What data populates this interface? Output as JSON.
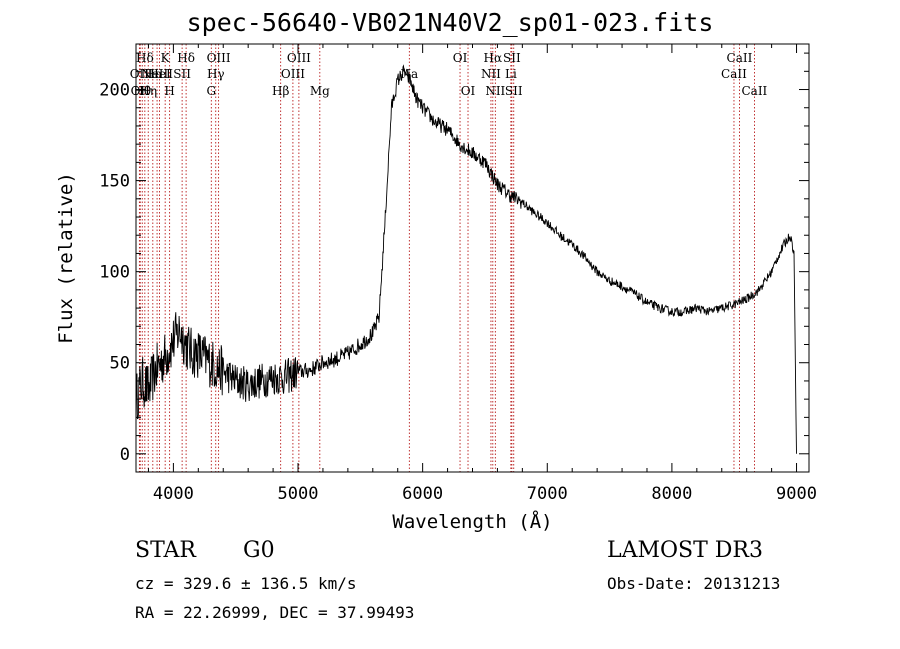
{
  "chart_data": {
    "type": "line",
    "title": "spec-56640-VB021N40V2_sp01-023.fits",
    "xlabel": "Wavelength (Å)",
    "ylabel": "Flux (relative)",
    "xlim": [
      3700,
      9100
    ],
    "ylim": [
      -10,
      225
    ],
    "xticks": [
      4000,
      5000,
      6000,
      7000,
      8000,
      9000
    ],
    "yticks": [
      0,
      50,
      100,
      150,
      200
    ],
    "series": [
      {
        "name": "flux",
        "x": [
          3700,
          3750,
          3800,
          3850,
          3900,
          3950,
          4000,
          4050,
          4100,
          4150,
          4200,
          4300,
          4400,
          4500,
          4600,
          4700,
          4800,
          4900,
          5000,
          5100,
          5200,
          5300,
          5400,
          5500,
          5600,
          5650,
          5700,
          5750,
          5800,
          5850,
          5900,
          5950,
          6000,
          6100,
          6200,
          6300,
          6400,
          6500,
          6600,
          6700,
          6800,
          6900,
          7000,
          7100,
          7200,
          7300,
          7400,
          7500,
          7600,
          7700,
          7800,
          7900,
          8000,
          8100,
          8200,
          8300,
          8400,
          8500,
          8600,
          8700,
          8800,
          8850,
          8900,
          8950,
          8980,
          9000
        ],
        "y": [
          30,
          40,
          35,
          45,
          50,
          55,
          62,
          68,
          60,
          55,
          55,
          50,
          45,
          40,
          38,
          40,
          42,
          42,
          45,
          46,
          50,
          52,
          55,
          60,
          66,
          75,
          130,
          190,
          205,
          210,
          205,
          195,
          190,
          182,
          178,
          170,
          165,
          160,
          148,
          142,
          138,
          132,
          127,
          120,
          115,
          108,
          100,
          95,
          92,
          88,
          83,
          80,
          78,
          78,
          80,
          78,
          80,
          82,
          85,
          90,
          100,
          108,
          115,
          120,
          110,
          0
        ]
      }
    ],
    "lines": [
      {
        "w": 3727,
        "label": "OII",
        "row": 2
      },
      {
        "w": 3734,
        "label": "OII",
        "row": 3
      },
      {
        "w": 3750,
        "label": "Hθ",
        "row": 3
      },
      {
        "w": 3771,
        "label": "Hδ",
        "row": 1
      },
      {
        "w": 3798,
        "label": "Hη",
        "row": 3
      },
      {
        "w": 3835,
        "label": "Hε",
        "row": 2
      },
      {
        "w": 3869,
        "label": "NeIII",
        "row": 2
      },
      {
        "w": 3889,
        "label": "HeI",
        "row": 2
      },
      {
        "w": 3934,
        "label": "K",
        "row": 1
      },
      {
        "w": 3970,
        "label": "H",
        "row": 3
      },
      {
        "w": 4070,
        "label": "SII",
        "row": 2
      },
      {
        "w": 4102,
        "label": "Hδ",
        "row": 1
      },
      {
        "w": 4304,
        "label": "G",
        "row": 3
      },
      {
        "w": 4340,
        "label": "Hγ",
        "row": 2
      },
      {
        "w": 4363,
        "label": "OIII",
        "row": 1
      },
      {
        "w": 4861,
        "label": "Hβ",
        "row": 3
      },
      {
        "w": 4959,
        "label": "OIII",
        "row": 2
      },
      {
        "w": 5007,
        "label": "OIII",
        "row": 1
      },
      {
        "w": 5175,
        "label": "Mg",
        "row": 3
      },
      {
        "w": 5893,
        "label": "Na",
        "row": 2
      },
      {
        "w": 6300,
        "label": "OI",
        "row": 1
      },
      {
        "w": 6364,
        "label": "OI",
        "row": 3
      },
      {
        "w": 6548,
        "label": "NII",
        "row": 2
      },
      {
        "w": 6563,
        "label": "Hα",
        "row": 1
      },
      {
        "w": 6583,
        "label": "NII",
        "row": 3
      },
      {
        "w": 6708,
        "label": "Li",
        "row": 2
      },
      {
        "w": 6716,
        "label": "SII",
        "row": 1
      },
      {
        "w": 6731,
        "label": "SII",
        "row": 3
      },
      {
        "w": 8498,
        "label": "CaII",
        "row": 2
      },
      {
        "w": 8542,
        "label": "CaII",
        "row": 1
      },
      {
        "w": 8662,
        "label": "CaII",
        "row": 3
      }
    ]
  },
  "info": {
    "class_label": "STAR",
    "subclass": "G0",
    "survey": "LAMOST DR3",
    "cz": "cz = 329.6 ± 136.5 km/s",
    "obs_date": "Obs-Date: 20131213",
    "coords": "RA =  22.26999, DEC =  37.99493"
  }
}
